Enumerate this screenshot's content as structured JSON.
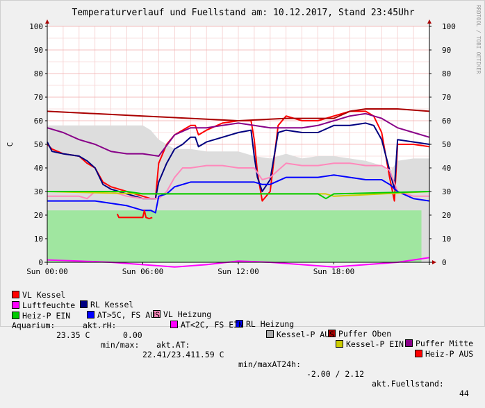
{
  "chart_data": {
    "type": "line",
    "title": "Temperaturverlauf und Fuellstand am: 10.12.2017, Stand 23:45Uhr",
    "watermark": "RRDTOOL / TOBI OETIKER",
    "ylabel": "C",
    "ylim": [
      0,
      100
    ],
    "yticks": [
      0,
      10,
      20,
      30,
      40,
      50,
      60,
      70,
      80,
      90,
      100
    ],
    "xlim": [
      0,
      24
    ],
    "xticks": [
      {
        "h": 0,
        "label": "Sun 00:00"
      },
      {
        "h": 6,
        "label": "Sun 06:00"
      },
      {
        "h": 12,
        "label": "Sun 12:00"
      },
      {
        "h": 18,
        "label": "Sun 18:00"
      }
    ],
    "series": [
      {
        "name": "VL Kessel",
        "color": "#FF0000",
        "x": [
          0,
          0.3,
          1,
          2,
          2.5,
          3,
          3.5,
          4,
          5,
          6,
          6.5,
          6.8,
          7,
          7.5,
          8,
          8.5,
          9,
          9.3,
          9.5,
          10,
          11,
          12,
          12.8,
          13,
          13.2,
          13.5,
          14,
          14.5,
          15,
          16,
          17,
          18,
          19,
          20,
          20.5,
          21,
          21.5,
          21.8,
          22,
          23,
          24
        ],
        "y": [
          50,
          48,
          46,
          45,
          42,
          40,
          34,
          32,
          30,
          28,
          27,
          27,
          42,
          50,
          54,
          56,
          58,
          58,
          54,
          56,
          59,
          60,
          60,
          52,
          38,
          26,
          30,
          58,
          62,
          60,
          60,
          62,
          64,
          64,
          62,
          55,
          36,
          26,
          50,
          50,
          49
        ]
      },
      {
        "name": "RL Kessel",
        "color": "#000080",
        "x": [
          0,
          0.3,
          1,
          2,
          2.5,
          3,
          3.5,
          4,
          5,
          6,
          6.5,
          6.8,
          7,
          7.5,
          8,
          8.5,
          9,
          9.3,
          9.5,
          10,
          11,
          12,
          12.8,
          13,
          13.2,
          13.5,
          14,
          14.5,
          15,
          16,
          17,
          18,
          19,
          20,
          20.5,
          21,
          21.5,
          21.8,
          22,
          23,
          24
        ],
        "y": [
          51,
          47,
          46,
          45,
          43,
          40,
          33,
          31,
          29,
          27,
          27,
          27,
          34,
          42,
          48,
          50,
          53,
          53,
          49,
          51,
          53,
          55,
          56,
          45,
          36,
          30,
          35,
          55,
          56,
          55,
          55,
          58,
          58,
          59,
          58,
          52,
          39,
          31,
          52,
          51,
          50
        ]
      },
      {
        "name": "VL Heizung",
        "color": "#FF88BB",
        "x": [
          0,
          1,
          2,
          2.5,
          3,
          4,
          5,
          6,
          6.5,
          6.8,
          7,
          7.5,
          8,
          8.5,
          9,
          10,
          11,
          12,
          13,
          13.5,
          14,
          15,
          16,
          17,
          18,
          19,
          20,
          21,
          21.5,
          22,
          23,
          24
        ],
        "y": [
          28,
          28,
          28,
          27,
          30,
          30,
          28,
          27,
          27,
          27,
          27,
          30,
          36,
          40,
          40,
          41,
          41,
          40,
          40,
          35,
          36,
          42,
          41,
          41,
          42,
          42,
          41,
          41,
          39,
          30,
          28,
          28
        ]
      },
      {
        "name": "RL Heizung",
        "color": "#0000FF",
        "x": [
          0,
          1,
          2,
          3,
          4,
          5,
          6,
          6.5,
          6.8,
          7,
          7.5,
          8,
          9,
          10,
          11,
          12,
          13,
          13.5,
          14,
          15,
          16,
          17,
          18,
          19,
          20,
          21,
          21.5,
          22,
          23,
          24
        ],
        "y": [
          26,
          26,
          26,
          26,
          25,
          24,
          22,
          22,
          21,
          28,
          29,
          32,
          34,
          34,
          34,
          34,
          34,
          33,
          33,
          36,
          36,
          36,
          37,
          36,
          35,
          35,
          33,
          30,
          27,
          26
        ]
      },
      {
        "name": "Puffer Oben",
        "color": "#AA0000",
        "x": [
          0,
          3,
          6,
          9,
          12,
          15,
          18,
          19,
          20,
          21,
          22,
          24
        ],
        "y": [
          64,
          63,
          62,
          61,
          60,
          61,
          61,
          64,
          65,
          65,
          65,
          64
        ]
      },
      {
        "name": "Puffer Mitte",
        "color": "#880088",
        "x": [
          0,
          1,
          2,
          3,
          4,
          5,
          6,
          7,
          8,
          9,
          10,
          11,
          12,
          13,
          14,
          15,
          16,
          17,
          18,
          19,
          20,
          21,
          22,
          23,
          24
        ],
        "y": [
          57,
          55,
          52,
          50,
          47,
          46,
          46,
          45,
          54,
          57,
          57,
          58,
          59,
          58,
          57,
          57,
          57,
          58,
          60,
          62,
          63,
          61,
          57,
          55,
          53
        ]
      },
      {
        "name": "Luftfeuchte",
        "color": "#FF00FF",
        "x": [
          0,
          2,
          4,
          6,
          8,
          10,
          12,
          14,
          16,
          18,
          20,
          22,
          24
        ],
        "y": [
          1,
          0.5,
          0,
          -1,
          -2,
          -1,
          0.5,
          0,
          -1,
          -2,
          -1,
          0,
          2
        ]
      },
      {
        "name": "AT>5C, FS AUS",
        "color": "#0000FF",
        "x": [],
        "y": []
      },
      {
        "name": "AT<2C, FS EIN",
        "color": "#FF00FF",
        "x": [],
        "y": []
      },
      {
        "name": "Kessel-P AUS",
        "color": "#AAAAAA",
        "fill": true,
        "x": [
          0,
          0.5,
          1,
          2,
          3,
          4,
          5,
          6,
          6.5,
          7,
          8,
          9,
          10,
          11,
          12,
          13,
          14,
          15,
          16,
          17,
          18,
          19,
          20,
          21,
          21.5,
          22,
          23,
          24
        ],
        "y": [
          58,
          58,
          58,
          58,
          58,
          58,
          58,
          58,
          56,
          52,
          48,
          48,
          47,
          47,
          47,
          45,
          44,
          46,
          44,
          45,
          45,
          44,
          43,
          41,
          38,
          43,
          44,
          44
        ]
      },
      {
        "name": "Kessel-P EIN",
        "color": "#CCCC00",
        "x": [
          0,
          6,
          12,
          17.5,
          18,
          24
        ],
        "y": [
          30,
          29,
          29,
          29,
          28,
          30
        ]
      },
      {
        "name": "Heiz-P AUS",
        "color": "#FF0000",
        "x": [
          4.4,
          4.5,
          6,
          6.1,
          6.2,
          6.4,
          6.6
        ],
        "y": [
          20.5,
          19,
          19,
          22,
          19,
          18.5,
          19
        ]
      },
      {
        "name": "Heiz-P EIN",
        "color": "#00CC00",
        "x": [
          0,
          5,
          6,
          7,
          12,
          13,
          17,
          17.5,
          18,
          24
        ],
        "y": [
          30,
          30,
          29,
          29,
          29,
          29,
          29,
          27,
          29,
          30
        ]
      }
    ],
    "area_fill": {
      "color": "#00CC00",
      "x": [
        0,
        23.5
      ],
      "y": [
        22,
        22
      ]
    },
    "stats": {
      "rh_label": "akt.rH:",
      "rh_value": "0.00",
      "at_label": "akt.AT:",
      "at_value": "1.59 C",
      "minmax_label": "min/maxAT24h:",
      "minmax_value": "-2.00 / 2.12",
      "fuellstand_label": "akt.Fuellstand:",
      "fuellstand_value": "44",
      "aquarium_label": "Aquarium:",
      "aquarium_value": "23.35 C",
      "aq_minmax_label": "min/max:",
      "aq_minmax_value": "22.41/23.41"
    }
  }
}
